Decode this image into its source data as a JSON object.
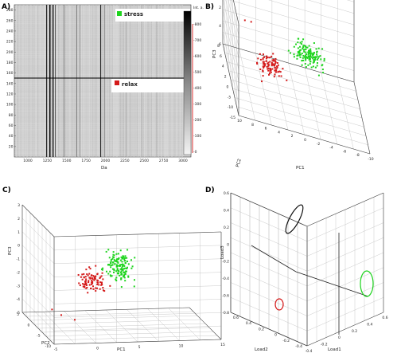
{
  "colors": {
    "stress": "#1ed41e",
    "relax": "#d41a1a",
    "black": "#111111",
    "grid": "#bdbdbd"
  },
  "chart_data": [
    {
      "panel": "A)",
      "type": "heatmap",
      "xlabel": "Da",
      "xticks": [
        "1000",
        "1250",
        "1500",
        "1750",
        "2000",
        "2250",
        "2500",
        "2750",
        "3000"
      ],
      "yticks": [
        "20",
        "40",
        "60",
        "80",
        "100",
        "120",
        "140",
        "160",
        "180",
        "200",
        "220",
        "240",
        "260",
        "280"
      ],
      "ylim": [
        0,
        290
      ],
      "colorbar_label": "Int. a.",
      "colorbar_ticks": [
        "-800",
        "-700",
        "-600",
        "-500",
        "-400",
        "-300",
        "-200",
        "-100",
        "-0"
      ],
      "split_at": 148,
      "legend": [
        {
          "name": "stress",
          "color": "#1ed41e"
        },
        {
          "name": "relax",
          "color": "#d41a1a"
        }
      ]
    },
    {
      "panel": "B)",
      "type": "scatter",
      "xlabel": "PC1",
      "ylabel": "PC2",
      "zlabel": "PC3",
      "xticks": [
        "10",
        "8",
        "6",
        "4",
        "2",
        "0",
        "-2",
        "-4",
        "-6",
        "-8",
        "-10"
      ],
      "yticks": [
        "8",
        "6",
        "4",
        "2",
        "0",
        "-5",
        "-10",
        "-15"
      ],
      "zticks": [
        "-4",
        "-2",
        "0",
        "2",
        "4",
        "6"
      ],
      "series": [
        {
          "name": "relax",
          "color": "#d41a1a",
          "cx": 7,
          "cy": 0,
          "cz": 0,
          "n": 95
        },
        {
          "name": "stress",
          "color": "#1ed41e",
          "cx": -2,
          "cy": 0,
          "cz": 1,
          "n": 130
        }
      ]
    },
    {
      "panel": "C)",
      "type": "scatter",
      "xlabel": "PC1",
      "ylabel": "PC2",
      "zlabel": "PC3",
      "xticks": [
        "-5",
        "0",
        "5",
        "10",
        "15"
      ],
      "yticks": [
        "5",
        "0",
        "-5",
        "-10"
      ],
      "zticks": [
        "-5",
        "-4",
        "-3",
        "-2",
        "-1",
        "0",
        "1",
        "2",
        "3"
      ],
      "series": [
        {
          "name": "relax",
          "color": "#d41a1a",
          "cx": 0,
          "cy": 0,
          "cz": -1,
          "n": 90
        },
        {
          "name": "stress",
          "color": "#1ed41e",
          "cx": 2,
          "cy": 0,
          "cz": 0.5,
          "n": 140
        }
      ]
    },
    {
      "panel": "D)",
      "type": "scatter",
      "xlabel": "Load1",
      "ylabel": "Load2",
      "zlabel": "Load3",
      "xticks": [
        "-0.4",
        "-0.2",
        "0",
        "0.2",
        "0.4",
        "0.6"
      ],
      "yticks": [
        "0.6",
        "0.4",
        "0.2",
        "0",
        "-0.2",
        "-0.4"
      ],
      "zticks": [
        "-0.8",
        "-0.6",
        "-0.4",
        "-0.2",
        "0",
        "0.2",
        "0.4",
        "0.6"
      ],
      "ellipses": [
        {
          "color": "#111111"
        },
        {
          "color": "#1ed41e"
        },
        {
          "color": "#d41a1a"
        }
      ]
    }
  ]
}
